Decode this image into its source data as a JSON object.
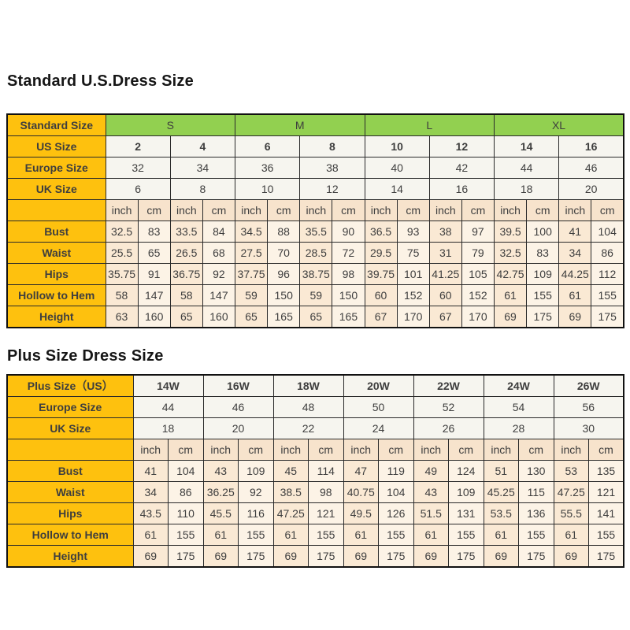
{
  "titles": {
    "standard": "Standard U.S.Dress Size",
    "plus": "Plus Size Dress Size"
  },
  "colors": {
    "label_cell_bg": "#FEC10E",
    "label_cell_text": "#8B4100",
    "group_header_bg": "#92D050",
    "size_row_bg": "#F6F5EF",
    "unit_header_bg": "#F7E3CC",
    "measure_cell_inch_bg": "#FAE9D4",
    "measure_cell_cm_bg": "#FCF3E6",
    "border": "#111111"
  },
  "tables": {
    "standard": {
      "corner": "Standard Size",
      "groups": [
        "S",
        "M",
        "L",
        "XL"
      ],
      "label_col_width": 125,
      "pairs": 8,
      "pair_rows": [
        {
          "label": "US Size",
          "bold": true,
          "values": [
            "2",
            "4",
            "6",
            "8",
            "10",
            "12",
            "14",
            "16"
          ]
        },
        {
          "label": "Europe Size",
          "bold": false,
          "values": [
            "32",
            "34",
            "36",
            "38",
            "40",
            "42",
            "44",
            "46"
          ]
        },
        {
          "label": "UK Size",
          "bold": false,
          "values": [
            "6",
            "8",
            "10",
            "12",
            "14",
            "16",
            "18",
            "20"
          ]
        }
      ],
      "units": [
        "inch",
        "cm"
      ],
      "meas_rows": [
        {
          "label": "Bust",
          "values": [
            "32.5",
            "83",
            "33.5",
            "84",
            "34.5",
            "88",
            "35.5",
            "90",
            "36.5",
            "93",
            "38",
            "97",
            "39.5",
            "100",
            "41",
            "104"
          ]
        },
        {
          "label": "Waist",
          "values": [
            "25.5",
            "65",
            "26.5",
            "68",
            "27.5",
            "70",
            "28.5",
            "72",
            "29.5",
            "75",
            "31",
            "79",
            "32.5",
            "83",
            "34",
            "86"
          ]
        },
        {
          "label": "Hips",
          "values": [
            "35.75",
            "91",
            "36.75",
            "92",
            "37.75",
            "96",
            "38.75",
            "98",
            "39.75",
            "101",
            "41.25",
            "105",
            "42.75",
            "109",
            "44.25",
            "112"
          ]
        },
        {
          "label": "Hollow to Hem",
          "values": [
            "58",
            "147",
            "58",
            "147",
            "59",
            "150",
            "59",
            "150",
            "60",
            "152",
            "60",
            "152",
            "61",
            "155",
            "61",
            "155"
          ]
        },
        {
          "label": "Height",
          "values": [
            "63",
            "160",
            "65",
            "160",
            "65",
            "165",
            "65",
            "165",
            "67",
            "170",
            "67",
            "170",
            "69",
            "175",
            "69",
            "175"
          ]
        }
      ]
    },
    "plus": {
      "corner": null,
      "groups": null,
      "label_col_width": 160,
      "pairs": 7,
      "pair_rows": [
        {
          "label": "Plus Size（US）",
          "bold": true,
          "values": [
            "14W",
            "16W",
            "18W",
            "20W",
            "22W",
            "24W",
            "26W"
          ]
        },
        {
          "label": "Europe Size",
          "bold": false,
          "values": [
            "44",
            "46",
            "48",
            "50",
            "52",
            "54",
            "56"
          ]
        },
        {
          "label": "UK Size",
          "bold": false,
          "values": [
            "18",
            "20",
            "22",
            "24",
            "26",
            "28",
            "30"
          ]
        }
      ],
      "units": [
        "inch",
        "cm"
      ],
      "meas_rows": [
        {
          "label": "Bust",
          "values": [
            "41",
            "104",
            "43",
            "109",
            "45",
            "114",
            "47",
            "119",
            "49",
            "124",
            "51",
            "130",
            "53",
            "135"
          ]
        },
        {
          "label": "Waist",
          "values": [
            "34",
            "86",
            "36.25",
            "92",
            "38.5",
            "98",
            "40.75",
            "104",
            "43",
            "109",
            "45.25",
            "115",
            "47.25",
            "121"
          ]
        },
        {
          "label": "Hips",
          "values": [
            "43.5",
            "110",
            "45.5",
            "116",
            "47.25",
            "121",
            "49.5",
            "126",
            "51.5",
            "131",
            "53.5",
            "136",
            "55.5",
            "141"
          ]
        },
        {
          "label": "Hollow to Hem",
          "values": [
            "61",
            "155",
            "61",
            "155",
            "61",
            "155",
            "61",
            "155",
            "61",
            "155",
            "61",
            "155",
            "61",
            "155"
          ]
        },
        {
          "label": "Height",
          "values": [
            "69",
            "175",
            "69",
            "175",
            "69",
            "175",
            "69",
            "175",
            "69",
            "175",
            "69",
            "175",
            "69",
            "175"
          ]
        }
      ]
    }
  }
}
